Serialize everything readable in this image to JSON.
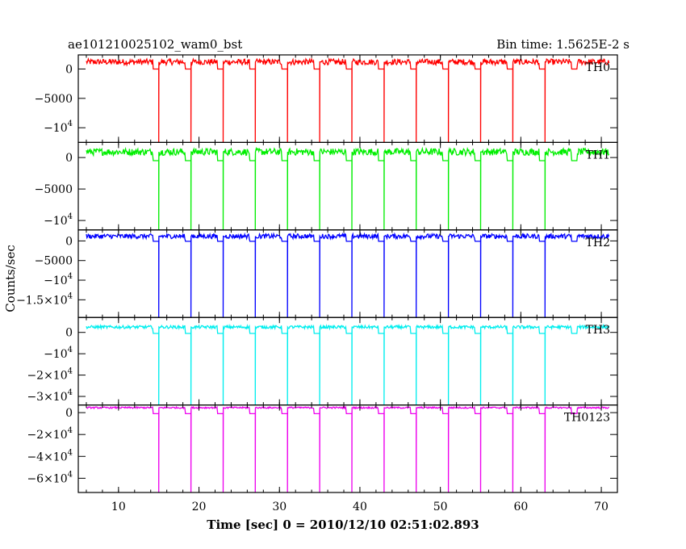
{
  "chart_data": {
    "type": "line",
    "title": "ae101210025102_wam0_bst",
    "subtitle": "Bin time: 1.5625E-2 s",
    "xlabel": "Time [sec] 0 = 2010/12/10 02:51:02.893",
    "ylabel": "Counts/sec",
    "xlim": [
      5,
      72
    ],
    "xticks": [
      "10",
      "20",
      "30",
      "40",
      "50",
      "60",
      "70"
    ],
    "pulse_times": [
      15,
      19,
      23,
      27,
      31,
      35,
      39,
      43,
      47,
      51,
      55,
      59,
      63,
      67
    ],
    "step_start_times": [
      14.3,
      18.3,
      22.3,
      26.3,
      30.3,
      34.3,
      38.3,
      42.3,
      46.3,
      50.3,
      54.3,
      58.3,
      62.3,
      66.3
    ],
    "start_time": 6,
    "end_time": 71,
    "panels": [
      {
        "name": "TH0",
        "color": "#ff0000",
        "ylim": [
          -12500,
          2400
        ],
        "level": 1200,
        "noise": 500,
        "gap_level": 0,
        "dip": -12500,
        "ytick_values": [
          0,
          -5000,
          -10000
        ],
        "ytick_labels": [
          {
            "base": "0",
            "exp": ""
          },
          {
            "base": "−5000",
            "exp": ""
          },
          {
            "base": "−10",
            "exp": "4"
          }
        ]
      },
      {
        "name": "TH1",
        "color": "#00ee00",
        "ylim": [
          -11500,
          2400
        ],
        "level": 900,
        "noise": 550,
        "gap_level": -500,
        "dip": -11500,
        "ytick_values": [
          0,
          -5000,
          -10000
        ],
        "ytick_labels": [
          {
            "base": "0",
            "exp": ""
          },
          {
            "base": "−5000",
            "exp": ""
          },
          {
            "base": "−10",
            "exp": "4"
          }
        ]
      },
      {
        "name": "TH2",
        "color": "#0000ff",
        "ylim": [
          -19500,
          2800
        ],
        "level": 1200,
        "noise": 600,
        "gap_level": -100,
        "dip": -19500,
        "ytick_values": [
          0,
          -5000,
          -10000,
          -15000
        ],
        "ytick_labels": [
          {
            "base": "0",
            "exp": ""
          },
          {
            "base": "−5000",
            "exp": ""
          },
          {
            "base": "−10",
            "exp": "4"
          },
          {
            "base": "−1.5×10",
            "exp": "4"
          }
        ]
      },
      {
        "name": "TH3",
        "color": "#00eeee",
        "ylim": [
          -34000,
          7000
        ],
        "level": 2500,
        "noise": 700,
        "gap_level": -500,
        "dip": -34000,
        "ytick_values": [
          0,
          -10000,
          -20000,
          -30000
        ],
        "ytick_labels": [
          {
            "base": "0",
            "exp": ""
          },
          {
            "base": "−10",
            "exp": "4"
          },
          {
            "base": "−2×10",
            "exp": "4"
          },
          {
            "base": "−3×10",
            "exp": "4"
          }
        ]
      },
      {
        "name": "TH0123",
        "color": "#ee00ee",
        "ylim": [
          -73000,
          7000
        ],
        "level": 4500,
        "noise": 700,
        "gap_level": -1000,
        "dip": -73000,
        "ytick_values": [
          0,
          -20000,
          -40000,
          -60000
        ],
        "ytick_labels": [
          {
            "base": "0",
            "exp": ""
          },
          {
            "base": "−2×10",
            "exp": "4"
          },
          {
            "base": "−4×10",
            "exp": "4"
          },
          {
            "base": "−6×10",
            "exp": "4"
          }
        ]
      }
    ]
  }
}
